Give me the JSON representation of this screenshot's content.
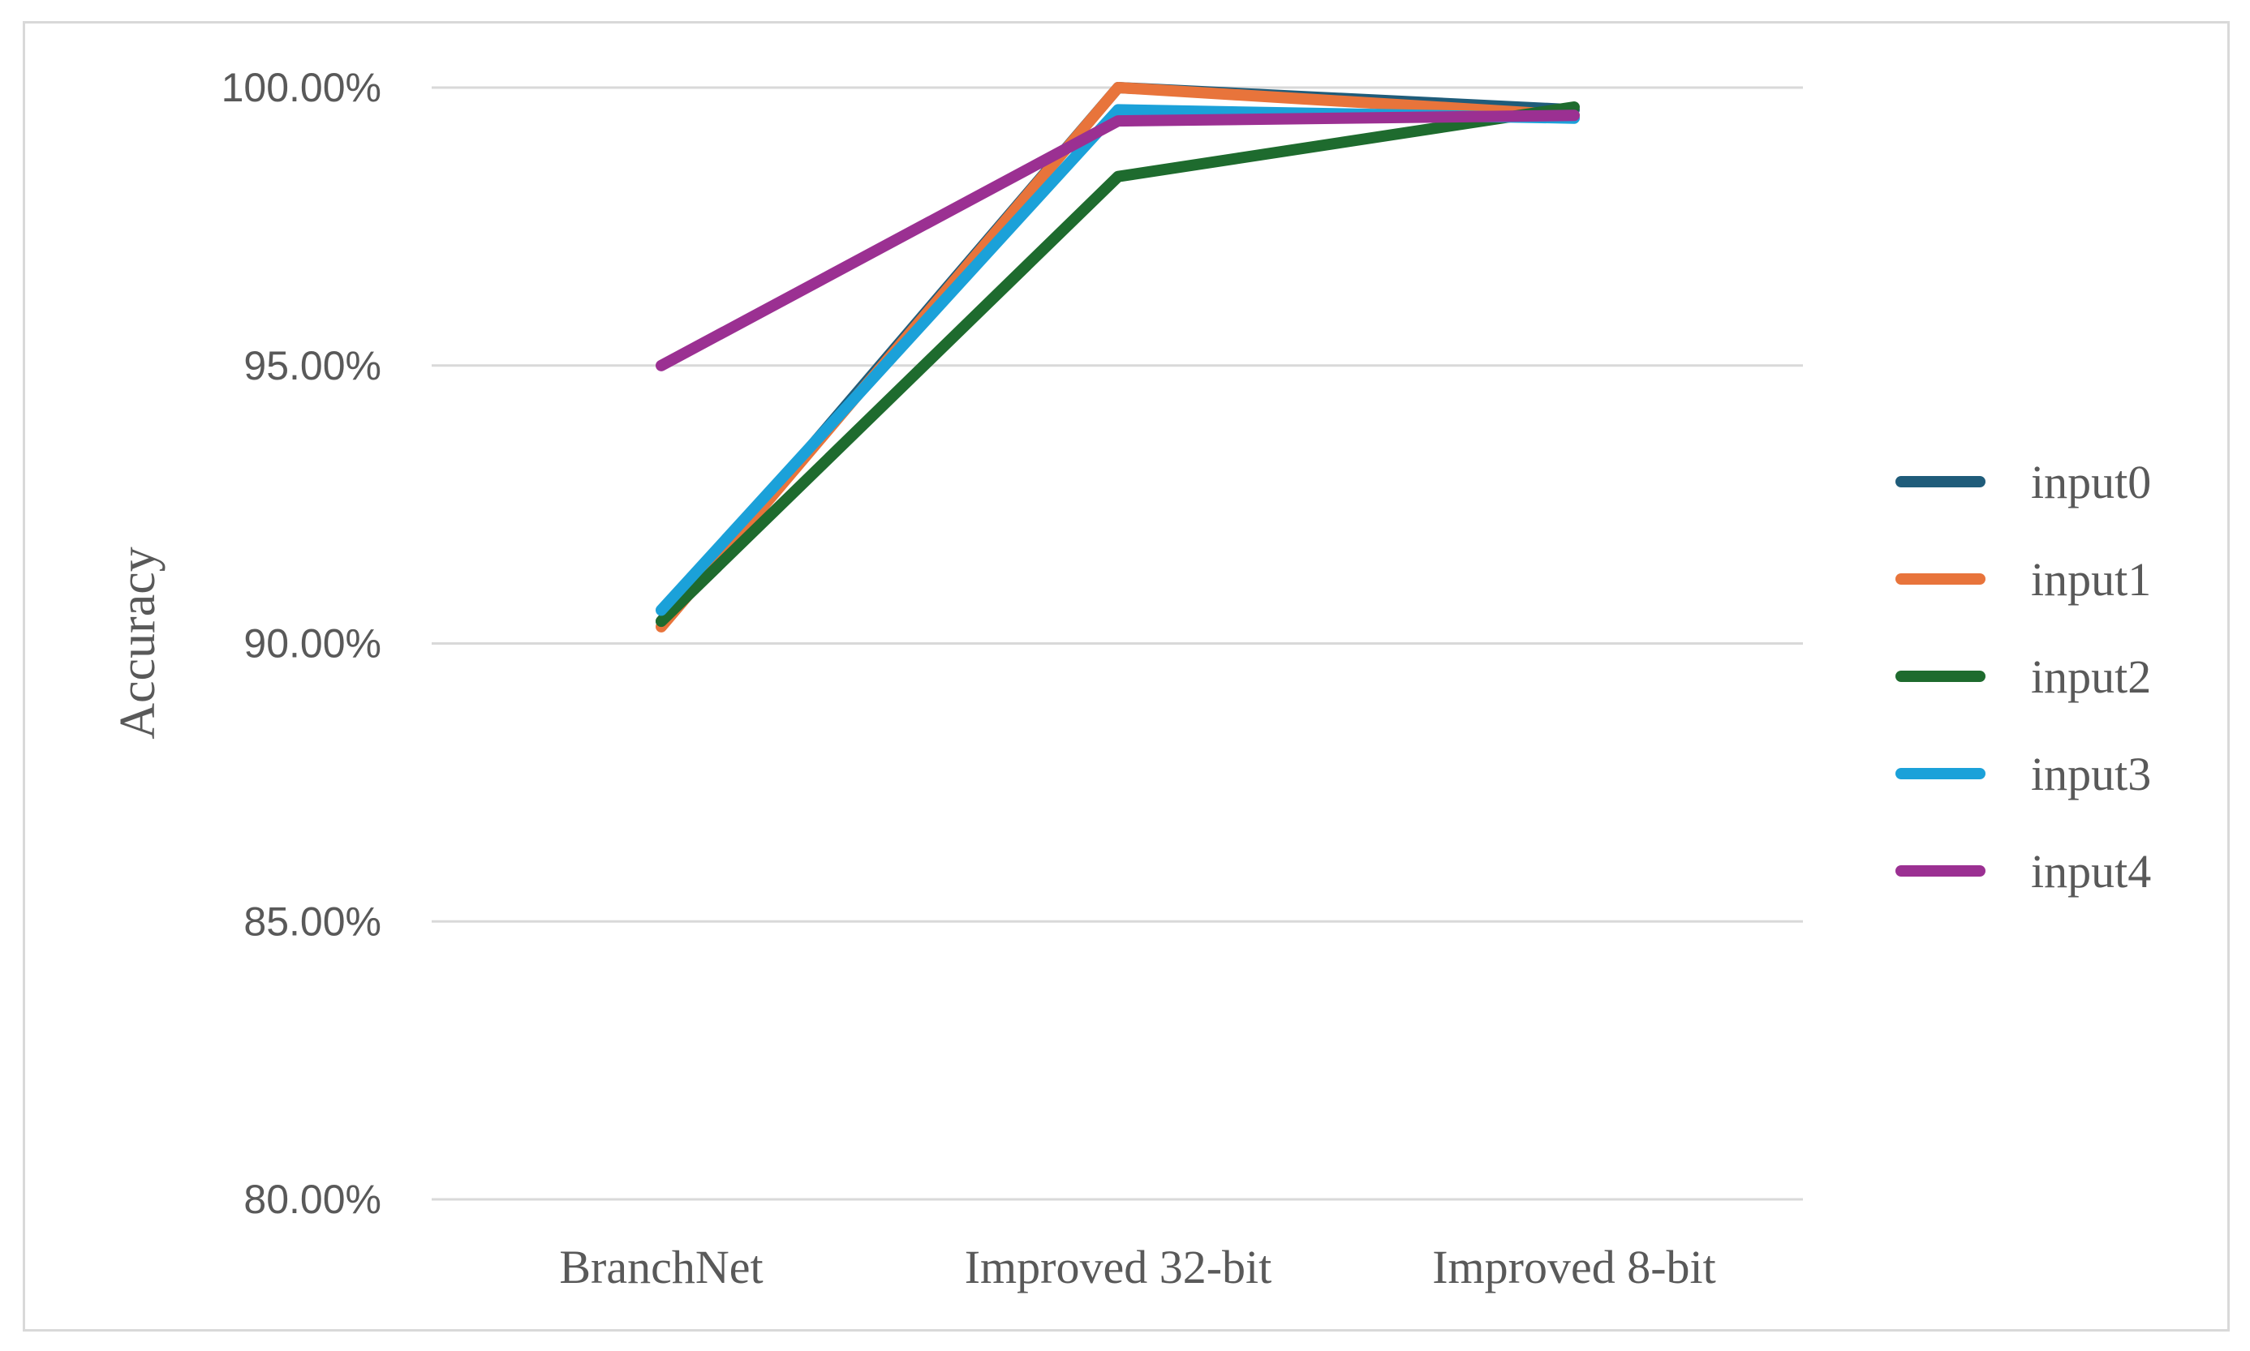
{
  "chart_data": {
    "type": "line",
    "categories": [
      "BranchNet",
      "Improved 32-bit",
      "Improved 8-bit"
    ],
    "ylabel": "Accuracy",
    "xlabel": "",
    "ylim": [
      80,
      100
    ],
    "yticks": [
      "80.00%",
      "85.00%",
      "90.00%",
      "95.00%",
      "100.00%"
    ],
    "ytick_values": [
      80,
      85,
      90,
      95,
      100
    ],
    "grid": "horizontal",
    "legend_position": "right",
    "series": [
      {
        "name": "input0",
        "color": "#1f5c7a",
        "values": [
          90.4,
          100.0,
          99.6
        ]
      },
      {
        "name": "input1",
        "color": "#e8743b",
        "values": [
          90.3,
          100.0,
          99.5
        ]
      },
      {
        "name": "input2",
        "color": "#1e6b2e",
        "values": [
          90.4,
          98.4,
          99.65
        ]
      },
      {
        "name": "input3",
        "color": "#1ba1d9",
        "values": [
          90.6,
          99.6,
          99.45
        ]
      },
      {
        "name": "input4",
        "color": "#9b3092",
        "values": [
          95.0,
          99.4,
          99.5
        ]
      }
    ]
  }
}
